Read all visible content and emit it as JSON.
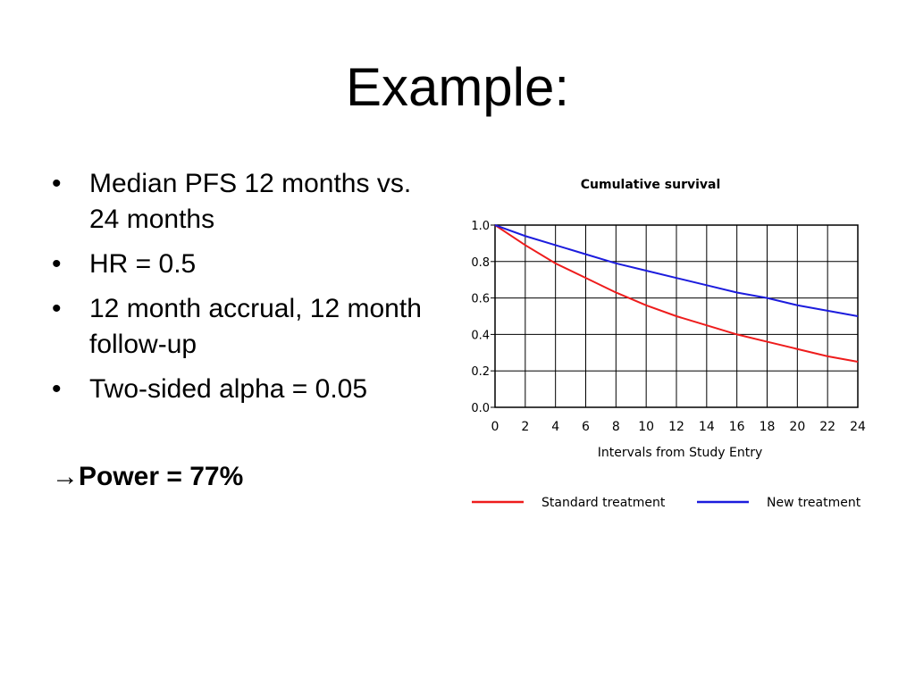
{
  "slide": {
    "title": "Example:",
    "bullets": [
      "Median PFS 12 months vs. 24 months",
      "HR = 0.5",
      "12 month accrual, 12 month follow-up",
      "Two-sided alpha = 0.05"
    ],
    "bullet_symbol": "•",
    "conclusion": {
      "arrow": "→",
      "text": "Power = 77%"
    }
  },
  "chart_data": {
    "type": "line",
    "title": "Cumulative survival",
    "xlabel": "Intervals from Study Entry",
    "ylabel": "",
    "xlim": [
      0,
      24
    ],
    "ylim": [
      0,
      1.0
    ],
    "x_ticks": [
      "0",
      "2",
      "4",
      "6",
      "8",
      "10",
      "12",
      "14",
      "16",
      "18",
      "20",
      "22",
      "24"
    ],
    "y_ticks": [
      "0.0",
      "0.2",
      "0.4",
      "0.6",
      "0.8",
      "1.0"
    ],
    "grid": true,
    "legend_position": "bottom",
    "x": [
      0,
      2,
      4,
      6,
      8,
      10,
      12,
      14,
      16,
      18,
      20,
      22,
      24
    ],
    "series": [
      {
        "name": "Standard treatment",
        "color": "#ee1c1c",
        "values": [
          1.0,
          0.89,
          0.79,
          0.71,
          0.63,
          0.56,
          0.5,
          0.45,
          0.4,
          0.36,
          0.32,
          0.28,
          0.25
        ]
      },
      {
        "name": "New treatment",
        "color": "#1c1cdd",
        "values": [
          1.0,
          0.94,
          0.89,
          0.84,
          0.79,
          0.75,
          0.71,
          0.67,
          0.63,
          0.6,
          0.56,
          0.53,
          0.5
        ]
      }
    ]
  }
}
